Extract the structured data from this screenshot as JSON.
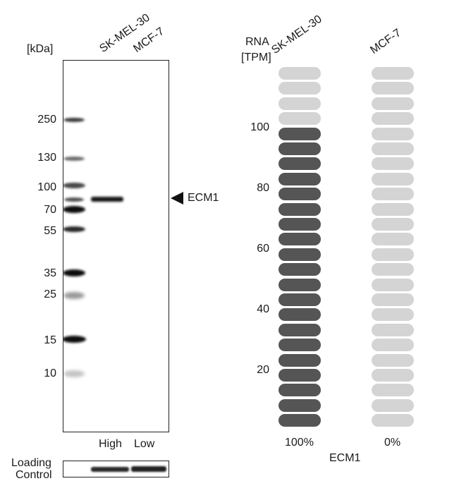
{
  "western_blot": {
    "unit_label": "[kDa]",
    "lane_labels": [
      "SK-MEL-30",
      "MCF-7"
    ],
    "markers": [
      "250",
      "130",
      "100",
      "70",
      "55",
      "35",
      "25",
      "15",
      "10"
    ],
    "target_label": "ECM1",
    "expression_labels": [
      "High",
      "Low"
    ],
    "loading_control_label_line1": "Loading",
    "loading_control_label_line2": "Control"
  },
  "rna": {
    "header_line1": "RNA",
    "header_line2": "[TPM]",
    "cell_lines": [
      "SK-MEL-30",
      "MCF-7"
    ],
    "scale_ticks": [
      "100",
      "80",
      "60",
      "40",
      "20"
    ],
    "percentages": [
      "100%",
      "0%"
    ],
    "gene_label": "ECM1",
    "pill_count": 24,
    "filled_counts": [
      20,
      0
    ],
    "filled_color": "#555555",
    "empty_color": "#d4d4d4"
  },
  "chart_data": {
    "type": "bar",
    "categories": [
      "SK-MEL-30",
      "MCF-7"
    ],
    "values": [
      100,
      0
    ],
    "ylabel": "RNA [TPM]",
    "xlabel": "ECM1",
    "ylim": [
      0,
      120
    ]
  }
}
